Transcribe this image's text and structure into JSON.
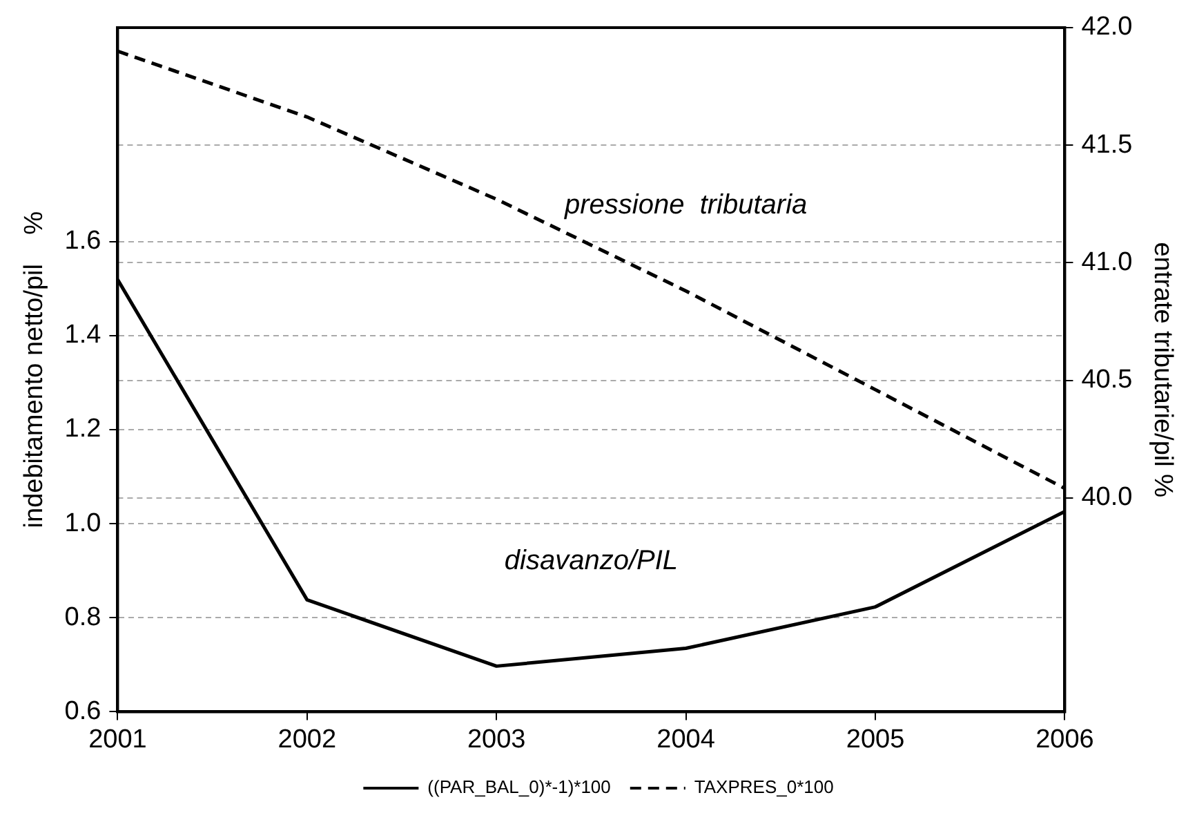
{
  "chart_data": {
    "type": "line",
    "xlabel": null,
    "ylabel": "indebitamento netto/pil    %",
    "y2label": "entrate tributarie/pil %",
    "x": [
      2001,
      2002,
      2003,
      2004,
      2005,
      2006
    ],
    "xlim": [
      2001,
      2006
    ],
    "xticks": [
      2001,
      2002,
      2003,
      2004,
      2005,
      2006
    ],
    "ylim": [
      0.6,
      2.055
    ],
    "yticks": [
      0.6,
      0.8,
      {
        "value": 1,
        "label": "1.0"
      },
      1.2,
      1.4,
      1.6
    ],
    "y2lim": [
      39.09,
      42.0
    ],
    "y2ticks": [
      {
        "value": 40,
        "label": "40.0"
      },
      40.5,
      {
        "value": 41,
        "label": "41.0"
      },
      41.5,
      {
        "value": 42,
        "label": "42.0"
      }
    ],
    "series": [
      {
        "name": "((PAR_BAL_0)*-1)*100",
        "color": "#000000",
        "line_style": "solid",
        "values": [
          1.519,
          0.838,
          0.697,
          0.735,
          0.823,
          1.026
        ]
      },
      {
        "name": "TAXPRES_0*100",
        "color": "#000000",
        "line_style": "dashed",
        "axis": "y2",
        "values": [
          41.9,
          41.62,
          41.27,
          40.88,
          40.46,
          40.04
        ]
      }
    ],
    "annotations": [
      "pressione  tributaria",
      "disavanzo/PIL"
    ],
    "grid": "y",
    "legend": "bottom",
    "marker": "none"
  }
}
